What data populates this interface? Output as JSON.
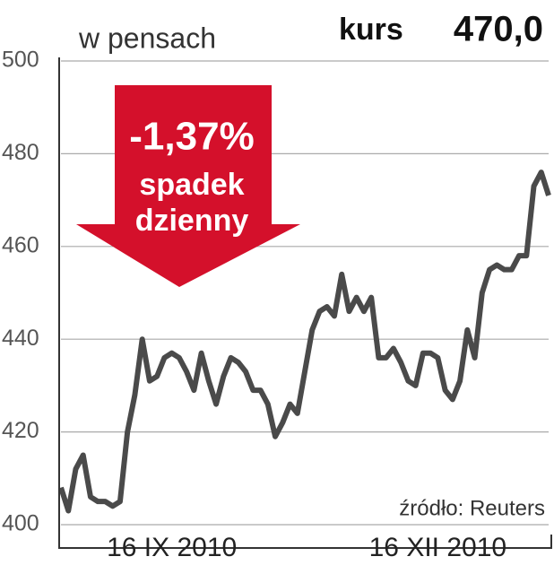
{
  "chart_data": {
    "type": "line",
    "y_label": "w pensach",
    "price_label": "kurs",
    "price_value": "470,0",
    "annotation": {
      "change": "-1,37%",
      "line1": "spadek",
      "line2": "dzienny"
    },
    "source": "źródło: Reuters",
    "categories": [
      null,
      null,
      null,
      null,
      null,
      null,
      null,
      null,
      null,
      null,
      null,
      null,
      null,
      null,
      null,
      "16 IX 2010",
      null,
      null,
      null,
      null,
      null,
      null,
      null,
      null,
      null,
      null,
      null,
      null,
      null,
      null,
      null,
      null,
      null,
      null,
      null,
      null,
      null,
      null,
      null,
      null,
      null,
      null,
      null,
      null,
      null,
      null,
      null,
      null,
      null,
      null,
      null,
      "16 XII 2010",
      null,
      null,
      null,
      null,
      null,
      null,
      null,
      null,
      null,
      null,
      null,
      null,
      null,
      null,
      null
    ],
    "series": [
      {
        "name": "kurs",
        "color": "#4a4a4a",
        "values": [
          408,
          403,
          412,
          415,
          406,
          405,
          405,
          404,
          405,
          420,
          428,
          440,
          431,
          432,
          436,
          437,
          436,
          433,
          429,
          437,
          431,
          426,
          432,
          436,
          435,
          433,
          429,
          429,
          426,
          419,
          422,
          426,
          424,
          433,
          442,
          446,
          447,
          445,
          454,
          446,
          449,
          446,
          449,
          436,
          436,
          438,
          435,
          431,
          430,
          437,
          437,
          436,
          429,
          427,
          431,
          442,
          436,
          450,
          455,
          456,
          455,
          455,
          458,
          458,
          473,
          476,
          471
        ]
      }
    ],
    "ylim": [
      400,
      500
    ],
    "yticks": [
      400,
      420,
      440,
      460,
      480,
      500
    ],
    "grid": true
  }
}
